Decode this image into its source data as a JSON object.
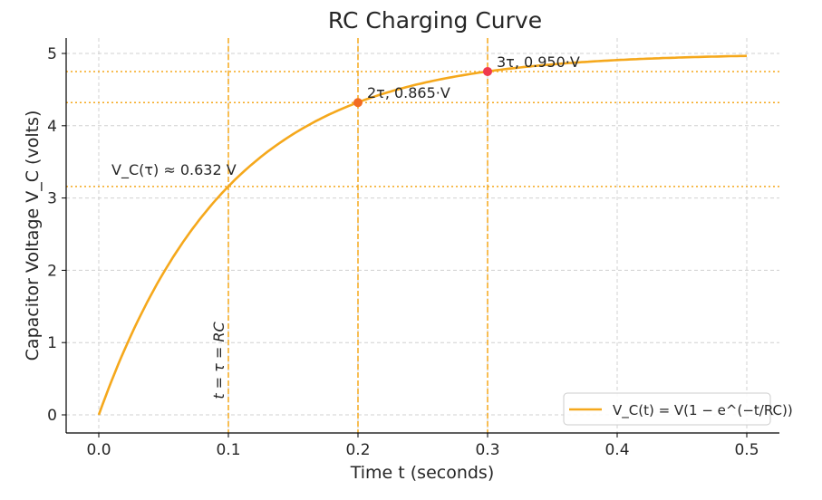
{
  "chart_data": {
    "type": "line",
    "title": "RC Charging Curve",
    "xlabel": "Time t (seconds)",
    "ylabel": "Capacitor Voltage V_C (volts)",
    "xlim": [
      -0.025,
      0.525
    ],
    "ylim": [
      -0.25,
      5.22
    ],
    "xticks": [
      0.0,
      0.1,
      0.2,
      0.3,
      0.4,
      0.5
    ],
    "xtick_labels": [
      "0.0",
      "0.1",
      "0.2",
      "0.3",
      "0.4",
      "0.5"
    ],
    "yticks": [
      0,
      1,
      2,
      3,
      4,
      5
    ],
    "ytick_labels": [
      "0",
      "1",
      "2",
      "3",
      "4",
      "5"
    ],
    "grid": true,
    "legend_position": "bottom-right",
    "series": [
      {
        "name": "V_C(t) = V(1 − e^(−t/RC))",
        "function": "V*(1-exp(-t/RC))",
        "V": 5,
        "RC": 0.1,
        "x_range": [
          0,
          0.5
        ],
        "color": "#f5a81c"
      }
    ],
    "vertical_lines": [
      {
        "x": 0.1,
        "label": "t = τ = RC",
        "color": "#f5a81c",
        "style": "dashed"
      },
      {
        "x": 0.2,
        "color": "#f5a81c",
        "style": "dashed"
      },
      {
        "x": 0.3,
        "color": "#f5a81c",
        "style": "dashed"
      }
    ],
    "horizontal_lines": [
      {
        "y": 3.16,
        "color": "#f5a81c",
        "style": "dotted"
      },
      {
        "y": 4.32,
        "color": "#f5a81c",
        "style": "dotted"
      },
      {
        "y": 4.75,
        "color": "#f5a81c",
        "style": "dotted"
      }
    ],
    "points": [
      {
        "x": 0.2,
        "y": 4.32,
        "label": "2τ, 0.865·V",
        "color": "#f26b21"
      },
      {
        "x": 0.3,
        "y": 4.75,
        "label": "3τ, 0.950·V",
        "color": "#f03a4e"
      }
    ],
    "annotations": [
      {
        "text": "V_C(τ) ≈ 0.632 V",
        "x": 0.01,
        "y": 3.3
      }
    ]
  }
}
